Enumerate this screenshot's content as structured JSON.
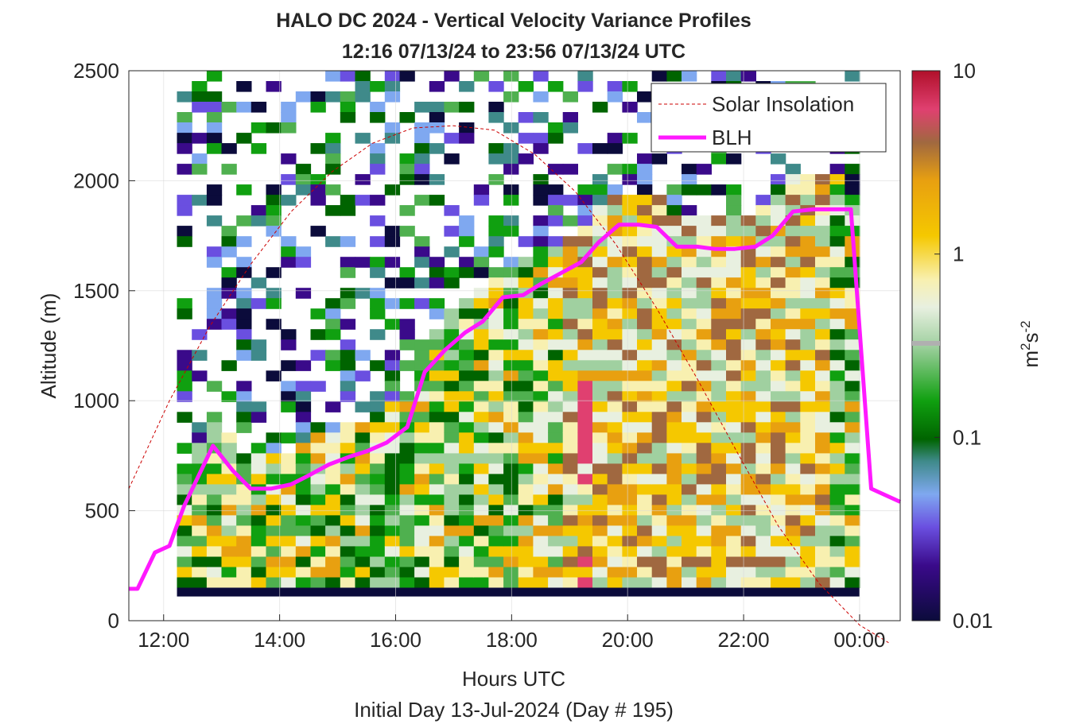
{
  "chart_data": {
    "type": "heatmap",
    "title_line1": "HALO DC 2024 - Vertical Velocity Variance Profiles",
    "title_line2": "12:16 07/13/24 to 23:56 07/13/24  UTC",
    "xlabel": "Hours UTC",
    "xlabel2": "Initial Day 13-Jul-2024 (Day # 195)",
    "ylabel": "Altitude (m)",
    "colorbar_label": "m²s⁻²",
    "colorbar_ticks": [
      "0.01",
      "0.1",
      "1",
      "10"
    ],
    "color_scale": "log",
    "clim": [
      0.01,
      10
    ],
    "xlim_hours": [
      11.4,
      24.7
    ],
    "ylim": [
      0,
      2500
    ],
    "x_ticks": [
      "12:00",
      "14:00",
      "16:00",
      "18:00",
      "20:00",
      "22:00",
      "00:00"
    ],
    "y_ticks": [
      "0",
      "500",
      "1000",
      "1500",
      "2000",
      "2500"
    ],
    "legend": {
      "placement": "top-right",
      "entries": [
        "Solar Insolation",
        "BLH"
      ]
    },
    "series": [
      {
        "name": "BLH",
        "color": "#ff19ff",
        "hours": [
          11.4,
          11.55,
          11.85,
          12.1,
          12.35,
          12.85,
          13.2,
          13.5,
          13.85,
          14.2,
          14.5,
          14.85,
          15.2,
          15.5,
          15.85,
          16.2,
          16.5,
          16.85,
          17.2,
          17.5,
          17.85,
          18.2,
          18.5,
          18.85,
          19.2,
          19.5,
          19.85,
          20.2,
          20.5,
          20.85,
          21.2,
          21.5,
          21.85,
          22.2,
          22.5,
          22.85,
          23.2,
          23.5,
          23.85,
          24.2,
          24.7
        ],
        "values": [
          145,
          145,
          310,
          340,
          520,
          795,
          680,
          600,
          600,
          620,
          660,
          710,
          745,
          770,
          810,
          880,
          1130,
          1230,
          1310,
          1360,
          1470,
          1480,
          1530,
          1580,
          1630,
          1720,
          1800,
          1800,
          1790,
          1700,
          1700,
          1690,
          1690,
          1700,
          1750,
          1860,
          1870,
          1870,
          1870,
          600,
          540
        ]
      },
      {
        "name": "Solar Insolation",
        "color": "#cc0000",
        "hours": [
          11.4,
          12.1,
          12.8,
          13.5,
          14.2,
          14.9,
          15.6,
          16.3,
          17.0,
          17.7,
          18.4,
          19.1,
          19.8,
          20.5,
          21.2,
          21.9,
          22.6,
          23.3,
          24.0,
          24.5
        ],
        "values": [
          600,
          1000,
          1340,
          1620,
          1860,
          2040,
          2170,
          2240,
          2250,
          2230,
          2120,
          1950,
          1710,
          1420,
          1100,
          760,
          430,
          170,
          -20,
          -100
        ]
      }
    ],
    "heatmap": {
      "x_range_hours": [
        12.23,
        24.0
      ],
      "y_range_m": [
        150,
        2500
      ],
      "n_cols": 46,
      "n_rows": 50,
      "values_log10": [
        "........................-.-.-..--.-.....-----",
        "........................-.-.-..--.-.....-----",
        "........................-.-.-..--.-.....-----",
        ".........................-.-.-..--.-.....----",
        "........................-.-..-.-.....--.-....",
        "............................................."
      ]
    }
  }
}
